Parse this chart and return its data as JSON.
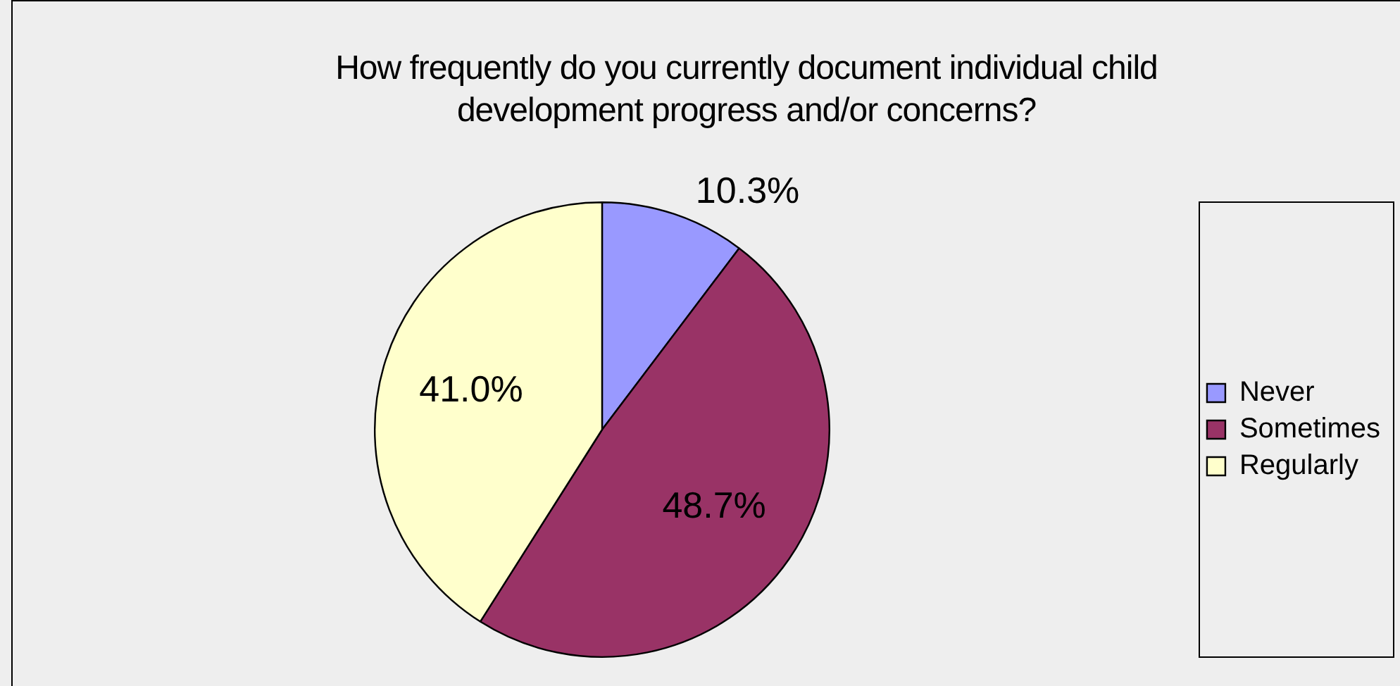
{
  "chart_data": {
    "type": "pie",
    "title": "How frequently do you currently document individual child development progress and/or concerns?",
    "categories": [
      "Never",
      "Sometimes",
      "Regularly"
    ],
    "values": [
      10.3,
      48.7,
      41.0
    ],
    "colors": [
      "#9999ff",
      "#993366",
      "#ffffcc"
    ],
    "value_labels": [
      "10.3%",
      "48.7%",
      "41.0%"
    ],
    "legend": "right"
  }
}
